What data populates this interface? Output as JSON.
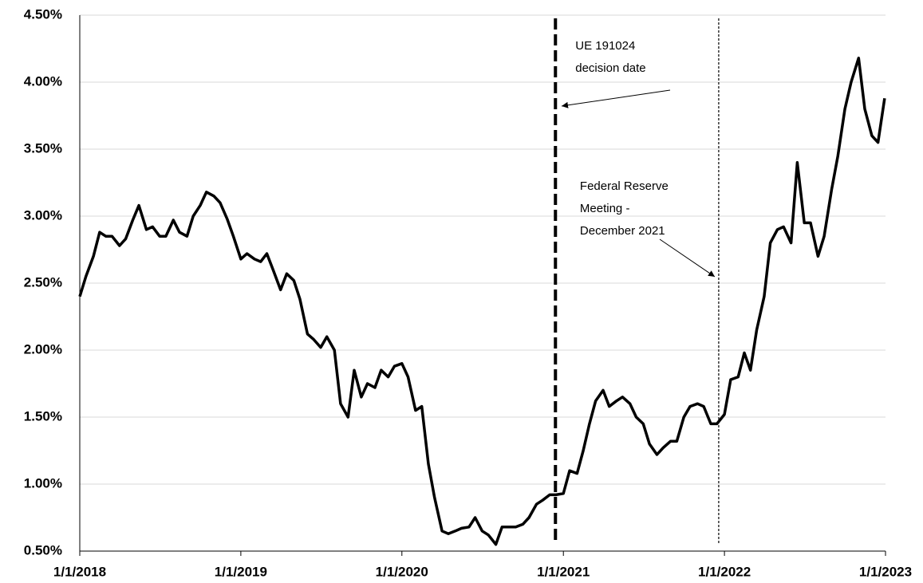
{
  "chart_data": {
    "type": "line",
    "xlim": [
      "1/1/2018",
      "1/1/2023"
    ],
    "xticks": [
      "1/1/2018",
      "1/1/2019",
      "1/1/2020",
      "1/1/2021",
      "1/1/2022",
      "1/1/2023"
    ],
    "ylim": [
      0.5,
      4.5
    ],
    "yticks": [
      {
        "value": 0.5,
        "label": "0.50%"
      },
      {
        "value": 1.0,
        "label": "1.00%"
      },
      {
        "value": 1.5,
        "label": "1.50%"
      },
      {
        "value": 2.0,
        "label": "2.00%"
      },
      {
        "value": 2.5,
        "label": "2.50%"
      },
      {
        "value": 3.0,
        "label": "3.00%"
      },
      {
        "value": 3.5,
        "label": "3.50%"
      },
      {
        "value": 4.0,
        "label": "4.00%"
      },
      {
        "value": 4.5,
        "label": "4.50%"
      }
    ],
    "grid": true,
    "color": "#000000",
    "x": [
      "1/1/2018",
      "1/15/2018",
      "2/1/2018",
      "2/15/2018",
      "3/1/2018",
      "3/15/2018",
      "4/1/2018",
      "4/15/2018",
      "5/1/2018",
      "5/15/2018",
      "6/1/2018",
      "6/15/2018",
      "7/1/2018",
      "7/15/2018",
      "8/1/2018",
      "8/15/2018",
      "9/1/2018",
      "9/15/2018",
      "10/1/2018",
      "10/15/2018",
      "11/1/2018",
      "11/15/2018",
      "12/1/2018",
      "12/15/2018",
      "1/1/2019",
      "1/15/2019",
      "2/1/2019",
      "2/15/2019",
      "3/1/2019",
      "3/15/2019",
      "4/1/2019",
      "4/15/2019",
      "5/1/2019",
      "5/15/2019",
      "6/1/2019",
      "6/15/2019",
      "7/1/2019",
      "7/15/2019",
      "8/1/2019",
      "8/15/2019",
      "9/1/2019",
      "9/15/2019",
      "10/1/2019",
      "10/15/2019",
      "11/1/2019",
      "11/15/2019",
      "12/1/2019",
      "12/15/2019",
      "1/1/2020",
      "1/15/2020",
      "2/1/2020",
      "2/15/2020",
      "3/1/2020",
      "3/15/2020",
      "4/1/2020",
      "4/15/2020",
      "5/1/2020",
      "5/15/2020",
      "6/1/2020",
      "6/15/2020",
      "7/1/2020",
      "7/15/2020",
      "8/1/2020",
      "8/15/2020",
      "9/1/2020",
      "9/15/2020",
      "10/1/2020",
      "10/15/2020",
      "11/1/2020",
      "11/15/2020",
      "12/1/2020",
      "12/15/2020",
      "1/1/2021",
      "1/15/2021",
      "2/1/2021",
      "2/15/2021",
      "3/1/2021",
      "3/15/2021",
      "4/1/2021",
      "4/15/2021",
      "5/1/2021",
      "5/15/2021",
      "6/1/2021",
      "6/15/2021",
      "7/1/2021",
      "7/15/2021",
      "8/1/2021",
      "8/15/2021",
      "9/1/2021",
      "9/15/2021",
      "10/1/2021",
      "10/15/2021",
      "11/1/2021",
      "11/15/2021",
      "12/1/2021",
      "12/15/2021",
      "1/1/2022",
      "1/15/2022",
      "2/1/2022",
      "2/15/2022",
      "3/1/2022",
      "3/15/2022",
      "4/1/2022",
      "4/15/2022",
      "5/1/2022",
      "5/15/2022",
      "6/1/2022",
      "6/15/2022",
      "7/1/2022",
      "7/15/2022",
      "8/1/2022",
      "8/15/2022",
      "9/1/2022",
      "9/15/2022",
      "10/1/2022",
      "10/15/2022",
      "11/1/2022",
      "11/15/2022",
      "12/1/2022",
      "12/15/2022",
      "12/30/2022"
    ],
    "values": [
      2.4,
      2.55,
      2.7,
      2.88,
      2.85,
      2.85,
      2.78,
      2.83,
      2.97,
      3.08,
      2.9,
      2.92,
      2.85,
      2.85,
      2.97,
      2.88,
      2.85,
      3.0,
      3.08,
      3.18,
      3.15,
      3.1,
      2.98,
      2.85,
      2.68,
      2.72,
      2.68,
      2.66,
      2.72,
      2.6,
      2.45,
      2.57,
      2.52,
      2.38,
      2.12,
      2.08,
      2.02,
      2.1,
      2.0,
      1.6,
      1.5,
      1.85,
      1.65,
      1.75,
      1.72,
      1.85,
      1.8,
      1.88,
      1.9,
      1.8,
      1.55,
      1.58,
      1.15,
      0.9,
      0.65,
      0.63,
      0.65,
      0.67,
      0.68,
      0.75,
      0.65,
      0.62,
      0.55,
      0.68,
      0.68,
      0.68,
      0.7,
      0.75,
      0.85,
      0.88,
      0.92,
      0.92,
      0.93,
      1.1,
      1.08,
      1.25,
      1.45,
      1.62,
      1.7,
      1.58,
      1.62,
      1.65,
      1.6,
      1.5,
      1.45,
      1.3,
      1.22,
      1.27,
      1.32,
      1.32,
      1.5,
      1.58,
      1.6,
      1.58,
      1.45,
      1.45,
      1.52,
      1.78,
      1.8,
      1.98,
      1.85,
      2.15,
      2.4,
      2.8,
      2.9,
      2.92,
      2.8,
      3.4,
      2.95,
      2.95,
      2.7,
      2.85,
      3.2,
      3.45,
      3.8,
      4.0,
      4.18,
      3.8,
      3.6,
      3.55,
      3.88
    ],
    "vlines": [
      {
        "x": "12/14/2020",
        "style": "dashed",
        "label": [
          "UE 191024",
          "decision date"
        ]
      },
      {
        "x": "12/19/2021",
        "style": "dotted",
        "label": [
          "Federal Reserve",
          "Meeting -",
          "December 2021"
        ]
      }
    ]
  }
}
